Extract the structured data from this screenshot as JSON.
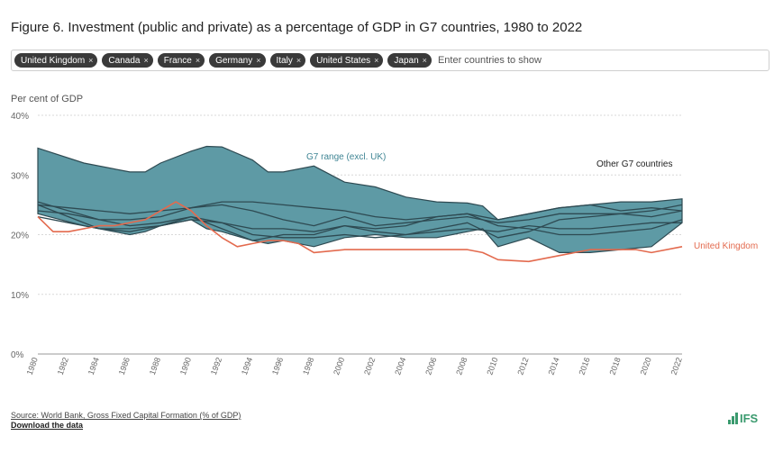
{
  "title": "Figure 6. Investment (public and private) as a percentage of GDP in G7 countries, 1980 to 2022",
  "filter": {
    "chips": [
      {
        "label": "United Kingdom"
      },
      {
        "label": "Canada"
      },
      {
        "label": "France"
      },
      {
        "label": "Germany"
      },
      {
        "label": "Italy"
      },
      {
        "label": "United States"
      },
      {
        "label": "Japan"
      }
    ],
    "chip_remove": "×",
    "placeholder": "Enter countries to show"
  },
  "source": "Source: World Bank, Gross Fixed Capital Formation (% of GDP)",
  "download": "Download the data",
  "logo": "IFS",
  "colors": {
    "band_fill": "#5e9aa5",
    "band_stroke": "#2e4a52",
    "other_lines": "#2e4a52",
    "uk_line": "#e36a4e",
    "band_label": "#3f8594",
    "grid": "#d8d8d8"
  },
  "chart_data": {
    "type": "line",
    "ylabel": "Per cent of GDP",
    "xlabel": "",
    "xlim": [
      1980,
      2022
    ],
    "ylim": [
      0,
      40
    ],
    "yticks": [
      0,
      10,
      20,
      30,
      40
    ],
    "ytick_labels": [
      "0%",
      "10%",
      "20%",
      "30%",
      "40%"
    ],
    "xticks": [
      1980,
      1982,
      1984,
      1986,
      1988,
      1990,
      1992,
      1994,
      1996,
      1998,
      2000,
      2002,
      2004,
      2006,
      2008,
      2010,
      2012,
      2014,
      2016,
      2018,
      2020,
      2022
    ],
    "grid": "horizontal",
    "annotations": {
      "band": "G7 range (excl. UK)",
      "others": "Other G7 countries",
      "uk": "United Kingdom"
    },
    "band": {
      "x": [
        1980,
        1983,
        1986,
        1987,
        1988,
        1990,
        1991,
        1992,
        1994,
        1995,
        1996,
        1998,
        2000,
        2002,
        2004,
        2006,
        2008,
        2009,
        2010,
        2012,
        2014,
        2016,
        2018,
        2020,
        2022
      ],
      "upper": [
        34.5,
        32,
        30.5,
        30.5,
        32,
        34,
        34.8,
        34.7,
        32.5,
        30.5,
        30.5,
        31.5,
        28.8,
        28,
        26.3,
        25.5,
        25.3,
        24.8,
        22.5,
        23.5,
        24.5,
        25,
        25.5,
        25.5,
        26
      ],
      "lower": [
        23.5,
        21.5,
        20,
        20.5,
        21.5,
        22.5,
        21,
        20.5,
        19,
        18.5,
        19,
        18,
        19.5,
        20,
        19.5,
        19.5,
        20.5,
        21,
        18,
        19.5,
        17,
        17,
        17.5,
        18,
        22
      ]
    },
    "series": [
      {
        "name": "United Kingdom",
        "x": [
          1980,
          1981,
          1982,
          1984,
          1985,
          1987,
          1988,
          1989,
          1990,
          1991,
          1992,
          1993,
          1994,
          1995,
          1996,
          1997,
          1998,
          2000,
          2002,
          2004,
          2006,
          2008,
          2009,
          2010,
          2012,
          2014,
          2016,
          2018,
          2019,
          2020,
          2022
        ],
        "values": [
          23,
          20.5,
          20.5,
          21.5,
          21.5,
          22.5,
          24,
          25.5,
          24,
          21.5,
          19.5,
          18,
          18.5,
          19,
          19,
          18.5,
          17,
          17.5,
          17.5,
          17.5,
          17.5,
          17.5,
          17,
          15.8,
          15.5,
          16.5,
          17.5,
          17.5,
          17.5,
          17,
          18
        ]
      },
      {
        "x": [
          1980,
          1982,
          1984,
          1986,
          1988,
          1990,
          1992,
          1994,
          1996,
          1998,
          2000,
          2002,
          2004,
          2006,
          2008,
          2010,
          2012,
          2014,
          2016,
          2018,
          2020,
          2022
        ],
        "values": [
          25.5,
          24,
          22.5,
          21.5,
          22,
          23,
          22,
          21,
          21,
          20.5,
          21.5,
          21,
          21.5,
          23,
          23.5,
          21.5,
          21,
          20,
          20,
          20.5,
          21,
          22.5
        ]
      },
      {
        "x": [
          1980,
          1982,
          1984,
          1986,
          1988,
          1990,
          1992,
          1994,
          1996,
          1998,
          2000,
          2002,
          2004,
          2006,
          2008,
          2010,
          2012,
          2014,
          2016,
          2018,
          2020,
          2022
        ],
        "values": [
          25,
          23,
          21,
          20.5,
          21.5,
          22.5,
          22,
          20,
          19.5,
          19.5,
          20,
          19.5,
          20,
          21,
          22,
          19.5,
          20.5,
          22.5,
          23,
          23.5,
          24,
          25
        ]
      },
      {
        "x": [
          1980,
          1982,
          1984,
          1986,
          1988,
          1990,
          1992,
          1994,
          1996,
          1998,
          2000,
          2002,
          2004,
          2006,
          2008,
          2010,
          2012,
          2014,
          2016,
          2018,
          2020,
          2022
        ],
        "values": [
          24,
          23.5,
          22.5,
          22.5,
          23,
          24.5,
          25,
          24,
          22.5,
          21.5,
          23,
          21.5,
          22,
          22.5,
          23,
          22,
          22.5,
          23.5,
          23.5,
          23.5,
          23,
          24
        ]
      },
      {
        "x": [
          1980,
          1982,
          1984,
          1986,
          1988,
          1990,
          1992,
          1994,
          1996,
          1998,
          2000,
          2002,
          2004,
          2006,
          2008,
          2010,
          2012,
          2014,
          2016,
          2018,
          2020,
          2022
        ],
        "values": [
          23,
          22,
          21,
          21,
          21.5,
          23,
          21,
          19,
          20,
          20,
          21.5,
          20.5,
          20,
          20.5,
          21,
          20.5,
          21.5,
          21,
          21,
          21.5,
          22,
          22
        ]
      },
      {
        "x": [
          1980,
          1982,
          1984,
          1986,
          1988,
          1990,
          1992,
          1994,
          1996,
          1998,
          2000,
          2002,
          2004,
          2006,
          2008,
          2010,
          2012,
          2014,
          2016,
          2018,
          2020,
          2022
        ],
        "values": [
          25,
          24.5,
          24,
          23.5,
          24,
          24.5,
          25.5,
          25.5,
          25,
          24.5,
          24,
          23,
          22.5,
          23,
          23.5,
          22.5,
          23.5,
          24.5,
          25,
          24,
          24.5,
          24
        ]
      }
    ]
  }
}
